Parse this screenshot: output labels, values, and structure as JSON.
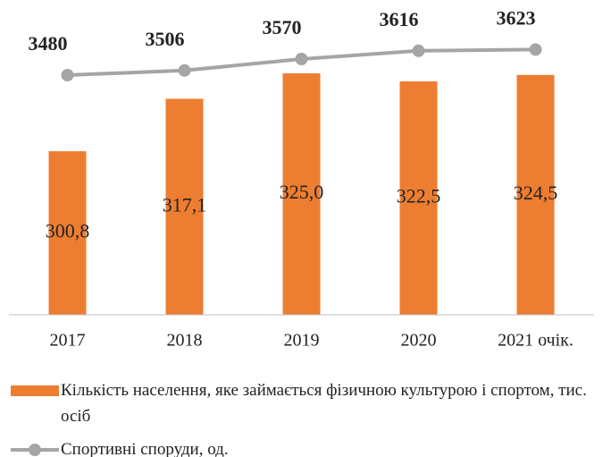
{
  "chart_data": {
    "type": "bar",
    "categories": [
      "2017",
      "2018",
      "2019",
      "2020",
      "2021 очік."
    ],
    "series": [
      {
        "name": "Кількість населення, яке займається фізичною культурою і спортом, тис. осіб",
        "type": "bar",
        "color": "#ed7d31",
        "values": [
          300.8,
          317.1,
          325.0,
          322.5,
          324.5
        ],
        "value_labels": [
          "300,8",
          "317,1",
          "325,0",
          "322,5",
          "324,5"
        ]
      },
      {
        "name": "Спортивні споруди, од.",
        "type": "line",
        "axis": "y2",
        "color": "#a5a5a5",
        "values": [
          3480,
          3506,
          3570,
          3616,
          3623
        ]
      }
    ],
    "ylim": [
      250,
      340
    ],
    "y2lim": [
      2140,
      3760
    ],
    "legend": "bottom"
  }
}
